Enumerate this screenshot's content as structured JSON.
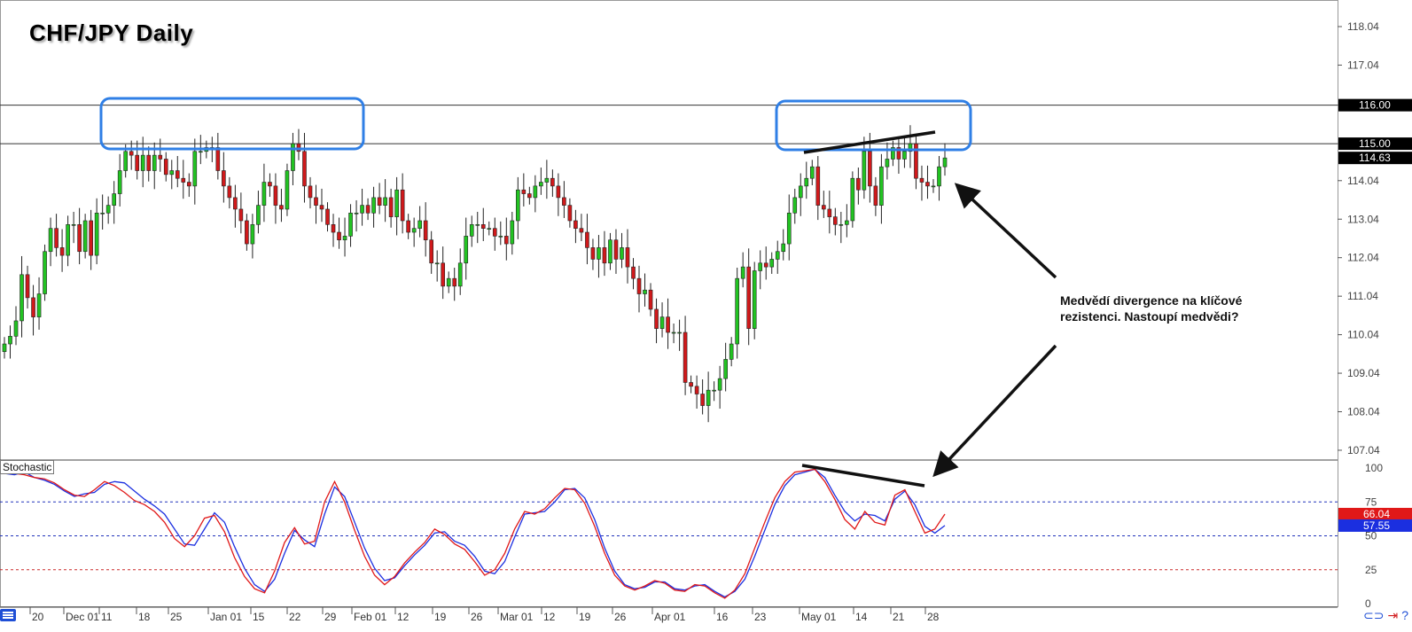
{
  "title": "CHF/JPY Daily",
  "annotation": "Medvědí divergence na klíčové rezistenci. Nastoupí medvědi?",
  "indicator_label": "Stochastic",
  "icons": {
    "menu": "menu-icon",
    "link": "link-icon",
    "arrow": "arrow-icon",
    "help": "help-icon"
  },
  "colors": {
    "bull": "#22c322",
    "bear": "#d0191b",
    "box": "#2f7fe6",
    "stoch_k": "#1b2fe0",
    "stoch_d": "#ee2020",
    "level_line": "#333333"
  },
  "chart_data": [
    {
      "type": "candlestick",
      "title": "CHF/JPY Daily",
      "y_ticks": [
        "118.04",
        "117.04",
        "116.00",
        "115.00",
        "114.04",
        "113.04",
        "112.04",
        "111.04",
        "110.04",
        "109.04",
        "108.04",
        "107.04"
      ],
      "ylim": [
        106.9,
        118.3
      ],
      "x_ticks": [
        "20",
        "Dec 01",
        "11",
        "18",
        "25",
        "Jan 01",
        "15",
        "22",
        "29",
        "Feb 01",
        "12",
        "19",
        "26",
        "Mar 01",
        "12",
        "19",
        "26",
        "Apr 01",
        "16",
        "23",
        "May 01",
        "14",
        "21",
        "28"
      ],
      "horizontal_levels": [
        116.0,
        115.0
      ],
      "price_tags": [
        {
          "label": "116.00",
          "value": 116.0,
          "color": "#000000"
        },
        {
          "label": "115.00",
          "value": 115.0,
          "color": "#000000"
        },
        {
          "label": "114.63",
          "value": 114.63,
          "color": "#000000"
        }
      ],
      "closes": [
        109.8,
        110.0,
        110.4,
        111.6,
        111.0,
        110.5,
        111.1,
        112.2,
        112.8,
        112.3,
        112.1,
        112.9,
        112.9,
        112.2,
        113.0,
        112.1,
        113.2,
        113.2,
        113.4,
        113.7,
        114.3,
        114.8,
        114.7,
        114.3,
        114.7,
        114.3,
        114.7,
        114.6,
        114.2,
        114.3,
        114.1,
        114.0,
        113.9,
        114.8,
        114.8,
        114.9,
        114.9,
        114.3,
        113.9,
        113.6,
        113.3,
        113.0,
        112.4,
        112.9,
        113.4,
        114.0,
        113.9,
        113.4,
        113.3,
        114.3,
        115.0,
        114.8,
        113.9,
        113.6,
        113.4,
        113.3,
        112.9,
        112.7,
        112.5,
        112.6,
        113.2,
        113.2,
        113.4,
        113.2,
        113.6,
        113.4,
        113.6,
        113.1,
        113.8,
        113.0,
        112.7,
        112.8,
        113.0,
        112.5,
        111.9,
        111.9,
        111.3,
        111.5,
        111.3,
        111.9,
        112.6,
        112.9,
        112.9,
        112.8,
        112.8,
        112.6,
        112.6,
        112.4,
        113.0,
        113.8,
        113.7,
        113.6,
        113.9,
        114.0,
        114.1,
        113.9,
        113.6,
        113.4,
        113.0,
        112.8,
        112.7,
        112.3,
        112.0,
        112.3,
        111.9,
        112.5,
        112.0,
        112.3,
        111.8,
        111.5,
        111.1,
        111.2,
        110.7,
        110.2,
        110.5,
        110.1,
        110.1,
        110.1,
        108.8,
        108.7,
        108.5,
        108.2,
        108.6,
        108.6,
        108.9,
        109.4,
        109.8,
        111.5,
        111.8,
        110.2,
        111.7,
        111.9,
        111.8,
        112.0,
        112.2,
        112.4,
        113.2,
        113.6,
        113.9,
        114.1,
        114.4,
        113.4,
        113.3,
        113.1,
        112.9,
        112.9,
        113.0,
        114.1,
        113.8,
        114.8,
        113.9,
        113.4,
        114.4,
        114.6,
        114.9,
        114.6,
        114.8,
        115.0,
        114.1,
        114.0,
        113.9,
        113.9,
        114.4,
        114.63
      ]
    },
    {
      "type": "line",
      "title": "Stochastic",
      "ylim": [
        0,
        100
      ],
      "y_ticks": [
        "100",
        "75",
        "50",
        "25",
        "0"
      ],
      "reference_levels": [
        75,
        50,
        25
      ],
      "value_tags": [
        {
          "label": "66.04",
          "value": 66.04,
          "color": "#e01818"
        },
        {
          "label": "57.55",
          "value": 57.55,
          "color": "#1b2fe0"
        }
      ],
      "series": [
        {
          "name": "%K",
          "color": "#1b2fe0",
          "values": [
            96,
            95,
            97,
            93,
            91,
            88,
            83,
            79,
            81,
            82,
            88,
            90,
            89,
            83,
            77,
            72,
            66,
            55,
            44,
            43,
            55,
            67,
            60,
            42,
            26,
            14,
            9,
            18,
            37,
            54,
            47,
            42,
            66,
            86,
            79,
            60,
            41,
            26,
            17,
            19,
            28,
            36,
            43,
            52,
            53,
            46,
            43,
            35,
            24,
            22,
            31,
            49,
            66,
            67,
            68,
            75,
            84,
            85,
            78,
            62,
            41,
            24,
            14,
            11,
            12,
            16,
            16,
            11,
            10,
            13,
            14,
            9,
            5,
            9,
            18,
            35,
            54,
            73,
            87,
            95,
            97,
            99,
            93,
            80,
            68,
            61,
            66,
            65,
            61,
            77,
            83,
            73,
            57,
            52,
            57.55
          ]
        },
        {
          "name": "%D",
          "color": "#e01818",
          "values": [
            97,
            96,
            95,
            93,
            92,
            89,
            84,
            80,
            79,
            84,
            90,
            87,
            82,
            76,
            73,
            68,
            60,
            48,
            42,
            50,
            63,
            65,
            53,
            34,
            20,
            11,
            8,
            24,
            45,
            56,
            44,
            46,
            75,
            90,
            75,
            54,
            35,
            21,
            14,
            20,
            30,
            38,
            45,
            55,
            51,
            44,
            40,
            31,
            21,
            25,
            37,
            55,
            68,
            66,
            70,
            78,
            85,
            84,
            74,
            57,
            37,
            21,
            13,
            10,
            13,
            17,
            15,
            10,
            9,
            14,
            13,
            8,
            4,
            10,
            22,
            41,
            60,
            78,
            90,
            97,
            98,
            99,
            90,
            77,
            62,
            55,
            68,
            60,
            58,
            80,
            84,
            68,
            52,
            55,
            66.04
          ]
        }
      ]
    }
  ]
}
